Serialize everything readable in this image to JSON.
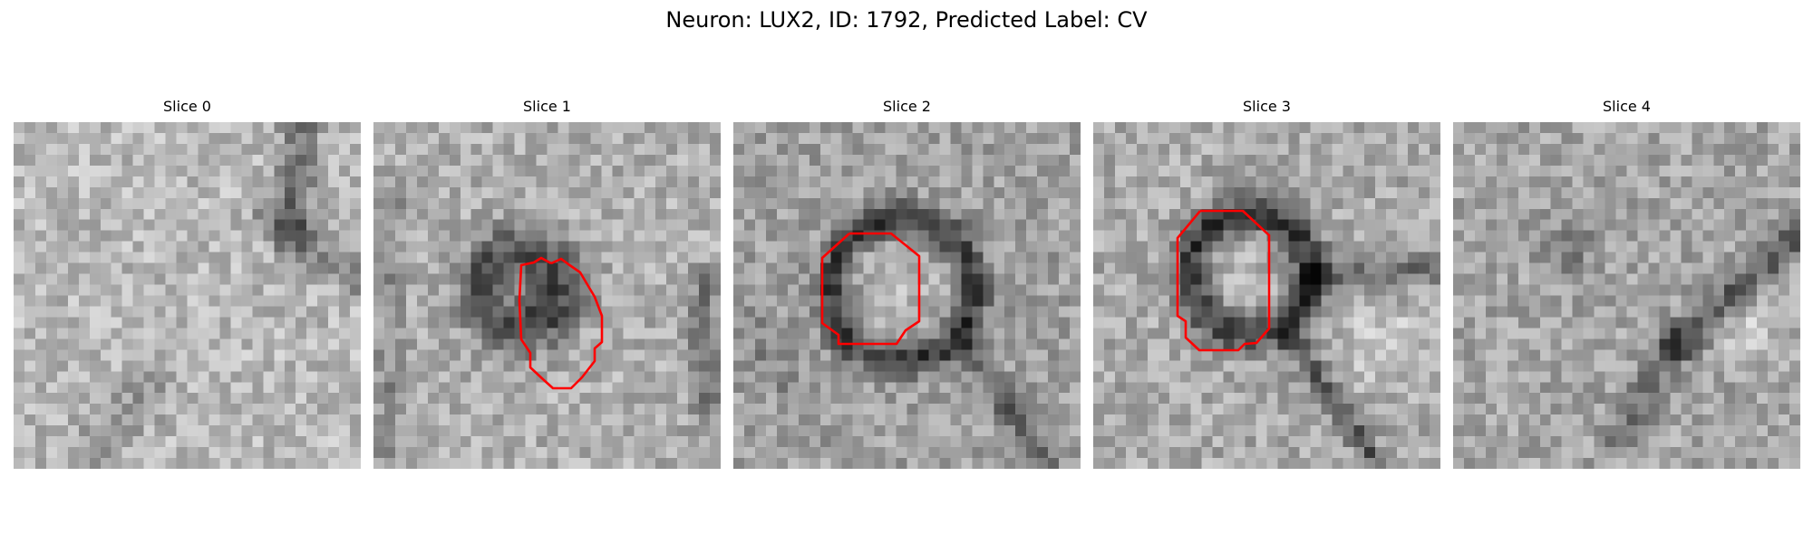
{
  "figure": {
    "title": "Neuron: LUX2, ID: 1792, Predicted Label: CV"
  },
  "colors": {
    "background": "#ffffff",
    "contour": "#ff0000",
    "colormap": "gray"
  },
  "panels": [
    {
      "title": "Slice 0",
      "has_contour": false
    },
    {
      "title": "Slice 1",
      "has_contour": true
    },
    {
      "title": "Slice 2",
      "has_contour": true
    },
    {
      "title": "Slice 3",
      "has_contour": true
    },
    {
      "title": "Slice 4",
      "has_contour": false
    }
  ]
}
